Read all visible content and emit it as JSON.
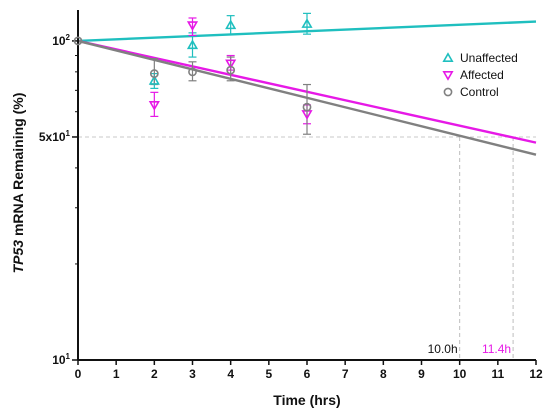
{
  "chart_data": {
    "type": "scatter",
    "xlabel": "Time (hrs)",
    "ylabel_italic": "TP53",
    "ylabel_rest": " mRNA Remaining (%)",
    "xlim": [
      0,
      12
    ],
    "ylim": [
      10,
      125
    ],
    "yscale": "log",
    "xticks": [
      0,
      1,
      2,
      3,
      4,
      5,
      6,
      7,
      8,
      9,
      10,
      11,
      12
    ],
    "yticks": [
      {
        "value": 100,
        "base": "10",
        "exp": "2"
      },
      {
        "value": 50,
        "base": "5x10",
        "exp": "1"
      },
      {
        "value": 10,
        "base": "10",
        "exp": "1"
      }
    ],
    "legend_position": "top-right",
    "reference_line_y": 50,
    "series": [
      {
        "name": "Unaffected",
        "color": "#1fbfbf",
        "marker": "triangle-up",
        "points": [
          {
            "x": 2,
            "y": 75,
            "lo": 71,
            "hi": 79
          },
          {
            "x": 3,
            "y": 97,
            "lo": 89,
            "hi": 106
          },
          {
            "x": 4,
            "y": 112,
            "lo": 105,
            "hi": 120
          },
          {
            "x": 6,
            "y": 113,
            "lo": 105,
            "hi": 122
          }
        ],
        "fit": {
          "x0": 0,
          "y0": 100,
          "x1": 12,
          "y1": 115
        }
      },
      {
        "name": "Affected",
        "color": "#e619e6",
        "marker": "triangle-down",
        "points": [
          {
            "x": 2,
            "y": 63,
            "lo": 58,
            "hi": 69
          },
          {
            "x": 3,
            "y": 112,
            "lo": 104,
            "hi": 118
          },
          {
            "x": 4,
            "y": 85,
            "lo": 81,
            "hi": 90
          },
          {
            "x": 6,
            "y": 59,
            "lo": 55,
            "hi": 63
          }
        ],
        "fit": {
          "x0": 0,
          "y0": 100,
          "x1": 12,
          "y1": 48
        },
        "half_life_label": "11.4h",
        "half_life_x": 11.4
      },
      {
        "name": "Control",
        "color": "#808080",
        "marker": "circle",
        "points": [
          {
            "x": 2,
            "y": 79,
            "lo": 73,
            "hi": 88
          },
          {
            "x": 3,
            "y": 80,
            "lo": 75,
            "hi": 86
          },
          {
            "x": 4,
            "y": 81,
            "lo": 75,
            "hi": 89
          },
          {
            "x": 6,
            "y": 62,
            "lo": 51,
            "hi": 73
          }
        ],
        "fit": {
          "x0": 0,
          "y0": 100,
          "x1": 12,
          "y1": 44
        },
        "half_life_label": "10.0h",
        "half_life_x": 10.0
      }
    ]
  }
}
